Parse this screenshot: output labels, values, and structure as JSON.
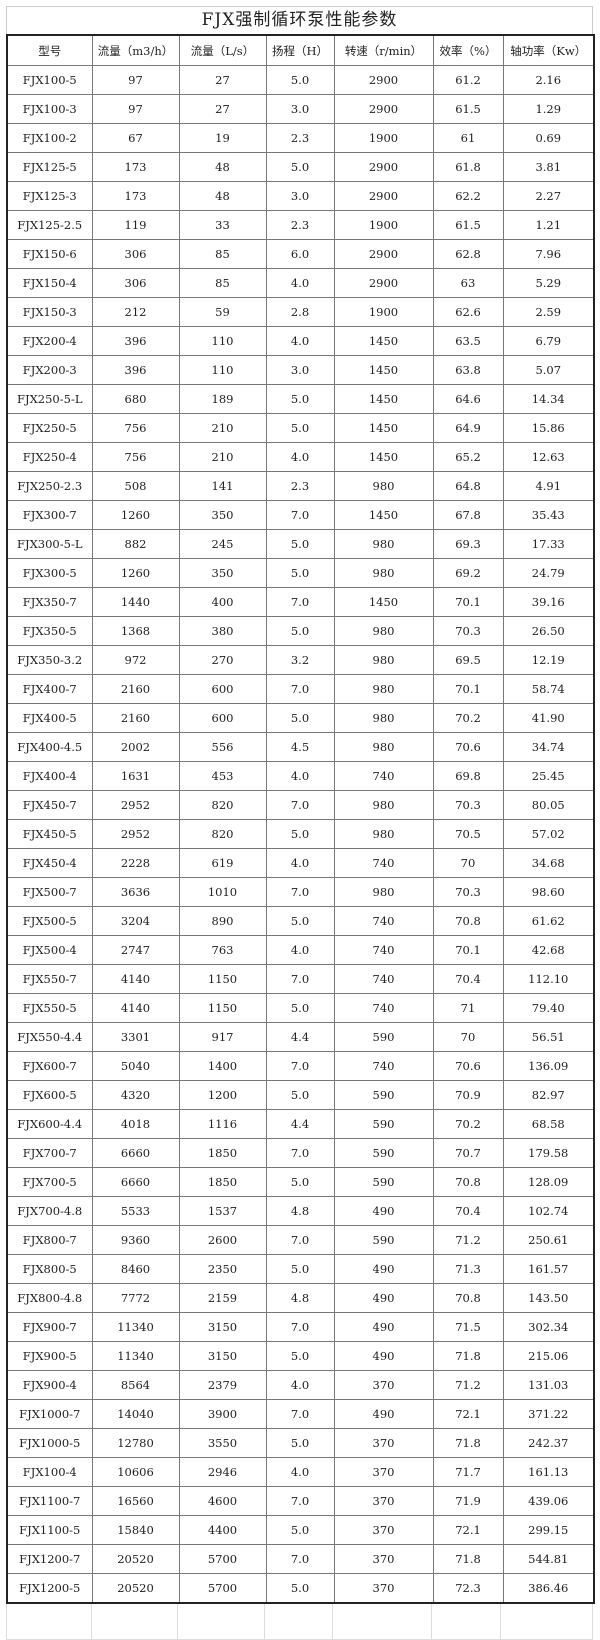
{
  "title": "FJX强制循环泵性能参数",
  "headers": [
    "型号",
    "流量（m3/h）",
    "流量（L/s）",
    "扬程（H）",
    "转速（r/min）",
    "效率（%）",
    "轴功率（Kw）"
  ],
  "rows": [
    [
      "FJX100-5",
      "97",
      "27",
      "5.0",
      "2900",
      "61.2",
      "2.16"
    ],
    [
      "FJX100-3",
      "97",
      "27",
      "3.0",
      "2900",
      "61.5",
      "1.29"
    ],
    [
      "FJX100-2",
      "67",
      "19",
      "2.3",
      "1900",
      "61",
      "0.69"
    ],
    [
      "FJX125-5",
      "173",
      "48",
      "5.0",
      "2900",
      "61.8",
      "3.81"
    ],
    [
      "FJX125-3",
      "173",
      "48",
      "3.0",
      "2900",
      "62.2",
      "2.27"
    ],
    [
      "FJX125-2.5",
      "119",
      "33",
      "2.3",
      "1900",
      "61.5",
      "1.21"
    ],
    [
      "FJX150-6",
      "306",
      "85",
      "6.0",
      "2900",
      "62.8",
      "7.96"
    ],
    [
      "FJX150-4",
      "306",
      "85",
      "4.0",
      "2900",
      "63",
      "5.29"
    ],
    [
      "FJX150-3",
      "212",
      "59",
      "2.8",
      "1900",
      "62.6",
      "2.59"
    ],
    [
      "FJX200-4",
      "396",
      "110",
      "4.0",
      "1450",
      "63.5",
      "6.79"
    ],
    [
      "FJX200-3",
      "396",
      "110",
      "3.0",
      "1450",
      "63.8",
      "5.07"
    ],
    [
      "FJX250-5-L",
      "680",
      "189",
      "5.0",
      "1450",
      "64.6",
      "14.34"
    ],
    [
      "FJX250-5",
      "756",
      "210",
      "5.0",
      "1450",
      "64.9",
      "15.86"
    ],
    [
      "FJX250-4",
      "756",
      "210",
      "4.0",
      "1450",
      "65.2",
      "12.63"
    ],
    [
      "FJX250-2.3",
      "508",
      "141",
      "2.3",
      "980",
      "64.8",
      "4.91"
    ],
    [
      "FJX300-7",
      "1260",
      "350",
      "7.0",
      "1450",
      "67.8",
      "35.43"
    ],
    [
      "FJX300-5-L",
      "882",
      "245",
      "5.0",
      "980",
      "69.3",
      "17.33"
    ],
    [
      "FJX300-5",
      "1260",
      "350",
      "5.0",
      "980",
      "69.2",
      "24.79"
    ],
    [
      "FJX350-7",
      "1440",
      "400",
      "7.0",
      "1450",
      "70.1",
      "39.16"
    ],
    [
      "FJX350-5",
      "1368",
      "380",
      "5.0",
      "980",
      "70.3",
      "26.50"
    ],
    [
      "FJX350-3.2",
      "972",
      "270",
      "3.2",
      "980",
      "69.5",
      "12.19"
    ],
    [
      "FJX400-7",
      "2160",
      "600",
      "7.0",
      "980",
      "70.1",
      "58.74"
    ],
    [
      "FJX400-5",
      "2160",
      "600",
      "5.0",
      "980",
      "70.2",
      "41.90"
    ],
    [
      "FJX400-4.5",
      "2002",
      "556",
      "4.5",
      "980",
      "70.6",
      "34.74"
    ],
    [
      "FJX400-4",
      "1631",
      "453",
      "4.0",
      "740",
      "69.8",
      "25.45"
    ],
    [
      "FJX450-7",
      "2952",
      "820",
      "7.0",
      "980",
      "70.3",
      "80.05"
    ],
    [
      "FJX450-5",
      "2952",
      "820",
      "5.0",
      "980",
      "70.5",
      "57.02"
    ],
    [
      "FJX450-4",
      "2228",
      "619",
      "4.0",
      "740",
      "70",
      "34.68"
    ],
    [
      "FJX500-7",
      "3636",
      "1010",
      "7.0",
      "980",
      "70.3",
      "98.60"
    ],
    [
      "FJX500-5",
      "3204",
      "890",
      "5.0",
      "740",
      "70.8",
      "61.62"
    ],
    [
      "FJX500-4",
      "2747",
      "763",
      "4.0",
      "740",
      "70.1",
      "42.68"
    ],
    [
      "FJX550-7",
      "4140",
      "1150",
      "7.0",
      "740",
      "70.4",
      "112.10"
    ],
    [
      "FJX550-5",
      "4140",
      "1150",
      "5.0",
      "740",
      "71",
      "79.40"
    ],
    [
      "FJX550-4.4",
      "3301",
      "917",
      "4.4",
      "590",
      "70",
      "56.51"
    ],
    [
      "FJX600-7",
      "5040",
      "1400",
      "7.0",
      "740",
      "70.6",
      "136.09"
    ],
    [
      "FJX600-5",
      "4320",
      "1200",
      "5.0",
      "590",
      "70.9",
      "82.97"
    ],
    [
      "FJX600-4.4",
      "4018",
      "1116",
      "4.4",
      "590",
      "70.2",
      "68.58"
    ],
    [
      "FJX700-7",
      "6660",
      "1850",
      "7.0",
      "590",
      "70.7",
      "179.58"
    ],
    [
      "FJX700-5",
      "6660",
      "1850",
      "5.0",
      "590",
      "70.8",
      "128.09"
    ],
    [
      "FJX700-4.8",
      "5533",
      "1537",
      "4.8",
      "490",
      "70.4",
      "102.74"
    ],
    [
      "FJX800-7",
      "9360",
      "2600",
      "7.0",
      "590",
      "71.2",
      "250.61"
    ],
    [
      "FJX800-5",
      "8460",
      "2350",
      "5.0",
      "490",
      "71.3",
      "161.57"
    ],
    [
      "FJX800-4.8",
      "7772",
      "2159",
      "4.8",
      "490",
      "70.8",
      "143.50"
    ],
    [
      "FJX900-7",
      "11340",
      "3150",
      "7.0",
      "490",
      "71.5",
      "302.34"
    ],
    [
      "FJX900-5",
      "11340",
      "3150",
      "5.0",
      "490",
      "71.8",
      "215.06"
    ],
    [
      "FJX900-4",
      "8564",
      "2379",
      "4.0",
      "370",
      "71.2",
      "131.03"
    ],
    [
      "FJX1000-7",
      "14040",
      "3900",
      "7.0",
      "490",
      "72.1",
      "371.22"
    ],
    [
      "FJX1000-5",
      "12780",
      "3550",
      "5.0",
      "370",
      "71.8",
      "242.37"
    ],
    [
      "FJX100-4",
      "10606",
      "2946",
      "4.0",
      "370",
      "71.7",
      "161.13"
    ],
    [
      "FJX1100-7",
      "16560",
      "4600",
      "7.0",
      "370",
      "71.9",
      "439.06"
    ],
    [
      "FJX1100-5",
      "15840",
      "4400",
      "5.0",
      "370",
      "72.1",
      "299.15"
    ],
    [
      "FJX1200-7",
      "20520",
      "5700",
      "7.0",
      "370",
      "71.8",
      "544.81"
    ],
    [
      "FJX1200-5",
      "20520",
      "5700",
      "5.0",
      "370",
      "72.3",
      "386.46"
    ]
  ]
}
